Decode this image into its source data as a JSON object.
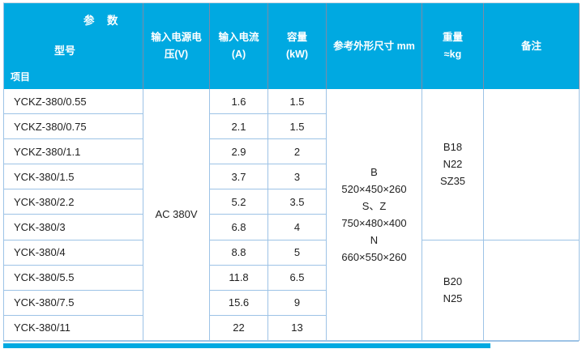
{
  "colors": {
    "header_bg": "#00A9E1",
    "header_text": "#FFFFFF",
    "header_divider": "#7E8AA6",
    "grid_line": "#9DC3E6",
    "body_text": "#1F1F1F",
    "bottom_bar": "#00A9E1"
  },
  "table": {
    "corner": {
      "param_label": "参　数",
      "model_label": "型号",
      "item_label": "项目"
    },
    "columns": {
      "voltage_l1": "输入电源电",
      "voltage_l2": "压(V)",
      "current_l1": "输入电流",
      "current_l2": "(A)",
      "capacity_l1": "容量",
      "capacity_l2": "(kW)",
      "dimensions": "参考外形尺寸 mm",
      "weight_l1": "重量",
      "weight_l2": "≈kg",
      "remark": "备注"
    },
    "voltage_value": "AC 380V",
    "rows": [
      {
        "model": "YCKZ-380/0.55",
        "current": "1.6",
        "capacity": "1.5"
      },
      {
        "model": "YCKZ-380/0.75",
        "current": "2.1",
        "capacity": "1.5"
      },
      {
        "model": "YCKZ-380/1.1",
        "current": "2.9",
        "capacity": "2"
      },
      {
        "model": "YCK-380/1.5",
        "current": "3.7",
        "capacity": "3"
      },
      {
        "model": "YCK-380/2.2",
        "current": "5.2",
        "capacity": "3.5"
      },
      {
        "model": "YCK-380/3",
        "current": "6.8",
        "capacity": "4"
      },
      {
        "model": "YCK-380/4",
        "current": "8.8",
        "capacity": "5"
      },
      {
        "model": "YCK-380/5.5",
        "current": "11.8",
        "capacity": "6.5"
      },
      {
        "model": "YCK-380/7.5",
        "current": "15.6",
        "capacity": "9"
      },
      {
        "model": "YCK-380/11",
        "current": "22",
        "capacity": "13"
      }
    ],
    "dimensions_cell": {
      "lines": [
        "B",
        "520×450×260",
        "S、Z",
        "750×480×400",
        "N",
        "660×550×260"
      ]
    },
    "weight_top": {
      "lines": [
        "B18",
        "N22",
        "SZ35"
      ]
    },
    "weight_bottom": {
      "lines": [
        "B20",
        "N25"
      ]
    },
    "remark_top": "",
    "remark_bottom": ""
  }
}
